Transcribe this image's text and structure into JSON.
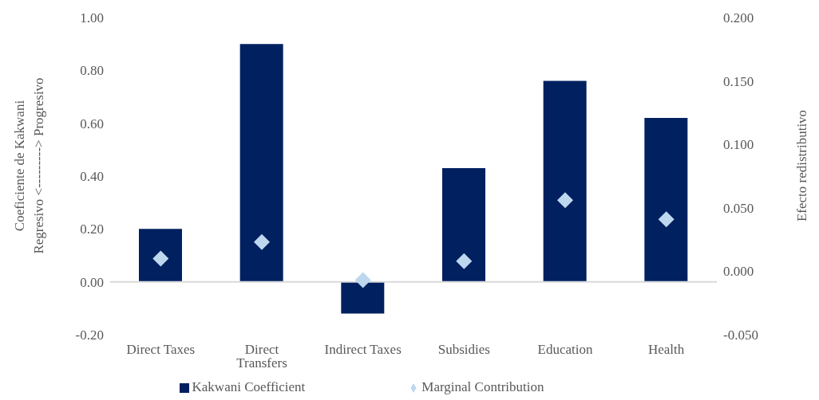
{
  "chart_data": {
    "type": "bar",
    "ylabel": "Coeficiente de Kakwani\nRegresivo <---------> Progresivo",
    "y2label": "Efecto redistributivo",
    "categories": [
      "Direct Taxes",
      "Direct Transfers",
      "Indirect Taxes",
      "Subsidies",
      "Education",
      "Health"
    ],
    "series": [
      {
        "name": "Kakwani Coefficient",
        "color": "#002060",
        "values": [
          0.2,
          0.9,
          -0.12,
          0.43,
          0.76,
          0.62
        ]
      },
      {
        "name": "Marginal Contribution",
        "type": "scatter",
        "axis": "y2",
        "marker": "diamond",
        "color": "#bdd7ee",
        "values": [
          0.01,
          0.023,
          -0.007,
          0.008,
          0.056,
          0.041
        ]
      }
    ],
    "ylim": [
      -0.2,
      1.0
    ],
    "yticks": [
      {
        "value": -0.2,
        "label": "-0.20"
      },
      {
        "value": 0,
        "label": "0.00"
      },
      {
        "value": 0.2,
        "label": "0.20"
      },
      {
        "value": 0.4,
        "label": "0.40"
      },
      {
        "value": 0.6,
        "label": "0.60"
      },
      {
        "value": 0.8,
        "label": "0.80"
      },
      {
        "value": 1.0,
        "label": "1.00"
      }
    ],
    "y2lim": [
      -0.05,
      0.2
    ],
    "y2ticks": [
      {
        "value": -0.05,
        "label": "-0.050"
      },
      {
        "value": 0,
        "label": "0.000"
      },
      {
        "value": 0.05,
        "label": "0.050"
      },
      {
        "value": 0.1,
        "label": "0.100"
      },
      {
        "value": 0.15,
        "label": "0.150"
      },
      {
        "value": 0.2,
        "label": "0.200"
      }
    ],
    "ref_lines": [
      {
        "axis": "y",
        "value": 0,
        "color": "#d9d9d9"
      }
    ],
    "grid": false,
    "legend": "bottom"
  }
}
